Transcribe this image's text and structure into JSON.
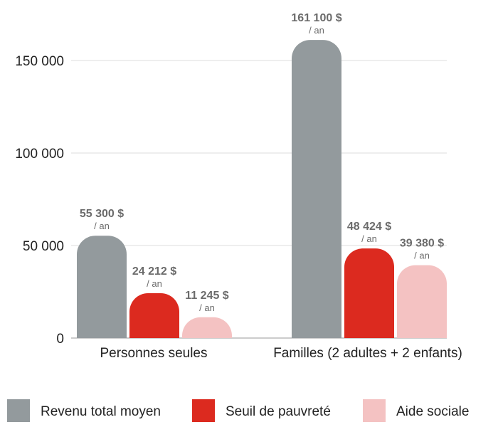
{
  "chart_data": {
    "type": "bar",
    "categories": [
      "Personnes seules",
      "Familles (2 adultes + 2 enfants)"
    ],
    "series": [
      {
        "name": "Revenu total moyen",
        "color": "#939a9d",
        "values": [
          55300,
          161100
        ],
        "labels": [
          "55 300 $",
          "161 100 $"
        ]
      },
      {
        "name": "Seuil de pauvreté",
        "color": "#dc2a1f",
        "values": [
          24212,
          48424
        ],
        "labels": [
          "24 212 $",
          "48 424 $"
        ]
      },
      {
        "name": "Aide sociale",
        "color": "#f4c2c2",
        "values": [
          11245,
          39380
        ],
        "labels": [
          "11 245 $",
          "39 380 $"
        ]
      }
    ],
    "unit_label": "/ an",
    "ylim": [
      0,
      165000
    ],
    "yticks": [
      0,
      50000,
      100000,
      150000
    ],
    "ytick_labels": [
      "0",
      "50 000",
      "100 000",
      "150 000"
    ],
    "grid": true,
    "legend_position": "bottom",
    "title": "",
    "xlabel": "",
    "ylabel": ""
  }
}
